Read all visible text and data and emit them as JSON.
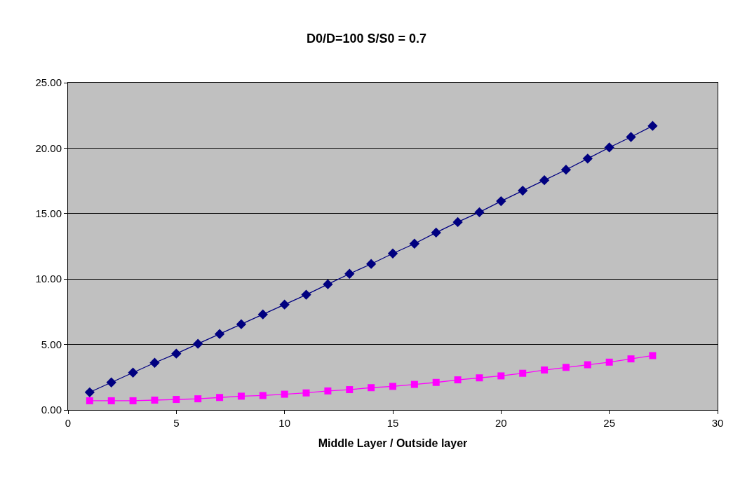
{
  "chart_data": {
    "type": "line",
    "title": "D0/D=100 S/S0 = 0.7",
    "xlabel": "Middle Layer / Outside layer",
    "x": [
      1,
      2,
      3,
      4,
      5,
      6,
      7,
      8,
      9,
      10,
      11,
      12,
      13,
      14,
      15,
      16,
      17,
      18,
      19,
      20,
      21,
      22,
      23,
      24,
      25,
      26,
      27
    ],
    "series": [
      {
        "color": "#000080",
        "marker": "diamond",
        "values": [
          1.35,
          2.1,
          2.85,
          3.6,
          4.3,
          5.05,
          5.8,
          6.55,
          7.3,
          8.05,
          8.8,
          9.6,
          10.4,
          11.15,
          11.95,
          12.7,
          13.55,
          14.35,
          15.1,
          15.95,
          16.75,
          17.55,
          18.35,
          19.2,
          20.05,
          20.85,
          21.7
        ]
      },
      {
        "color": "#ff00ff",
        "marker": "square",
        "values": [
          0.7,
          0.7,
          0.7,
          0.75,
          0.8,
          0.85,
          0.95,
          1.05,
          1.1,
          1.2,
          1.3,
          1.45,
          1.55,
          1.7,
          1.8,
          1.95,
          2.1,
          2.3,
          2.45,
          2.6,
          2.8,
          3.05,
          3.25,
          3.45,
          3.65,
          3.9,
          4.15
        ]
      }
    ],
    "xlim": [
      0,
      30
    ],
    "xticks": [
      0,
      5,
      10,
      15,
      20,
      25,
      30
    ],
    "ylim": [
      0,
      25
    ],
    "yticks": [
      {
        "value": 0,
        "label": "0.00"
      },
      {
        "value": 5,
        "label": "5.00"
      },
      {
        "value": 10,
        "label": "10.00"
      },
      {
        "value": 15,
        "label": "15.00"
      },
      {
        "value": 20,
        "label": "20.00"
      },
      {
        "value": 25,
        "label": "25.00"
      }
    ],
    "grid": "y",
    "line_style": "solid"
  }
}
